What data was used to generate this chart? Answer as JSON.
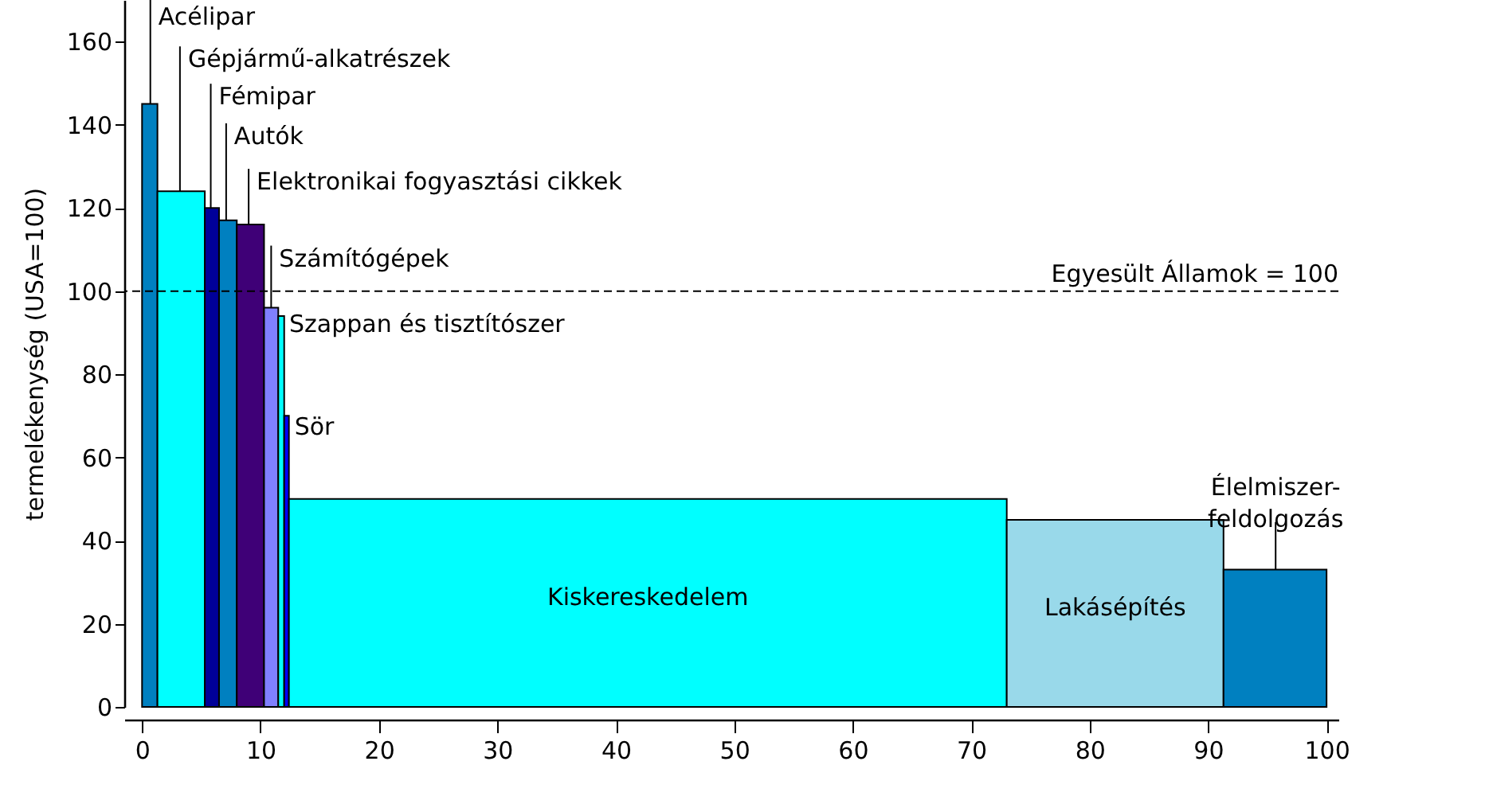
{
  "chart_data": {
    "type": "histogram",
    "bins": [
      0,
      1.3,
      5.3,
      6.5,
      8.0,
      10.3,
      11.5,
      12.0,
      12.4,
      73.0,
      91.3,
      100
    ],
    "values": [
      145,
      124,
      120,
      117,
      116,
      96,
      94,
      70,
      50,
      45,
      33
    ],
    "colors": [
      "#0080c0",
      "#00ffff",
      "#000099",
      "#0080c0",
      "#3f0077",
      "#8080ff",
      "#00ffff",
      "#0000ff",
      "#00ffff",
      "#99d9ea",
      "#0080c0"
    ],
    "ylabel": "termelékenység (USA=100)",
    "xlim": [
      -1.5,
      101
    ],
    "xticks": [
      0,
      10,
      20,
      30,
      40,
      50,
      60,
      70,
      80,
      90,
      100
    ],
    "ylim": [
      0,
      170
    ],
    "yticks": [
      0,
      20,
      40,
      60,
      80,
      100,
      120,
      140,
      160
    ],
    "grid": false,
    "ref_lines": [
      {
        "axis": "y",
        "value": 100,
        "label": "Egyesült Államok = 100",
        "line_style": "dashed",
        "color": "#000000"
      }
    ],
    "annotations": [
      {
        "text": "Acélipar",
        "x": 0.7,
        "y": 145
      },
      {
        "text": "Gépjármű-alkatrészek",
        "x": 3.2,
        "y": 124
      },
      {
        "text": "Fémipar",
        "x": 5.8,
        "y": 120
      },
      {
        "text": "Autók",
        "x": 7.1,
        "y": 117
      },
      {
        "text": "Elektronikai fogyasztási cikkek",
        "x": 9.0,
        "y": 116
      },
      {
        "text": "Számítógépek",
        "x": 10.9,
        "y": 96
      },
      {
        "text": "Szappan és tisztítószer",
        "x": 11.75,
        "y": 94
      },
      {
        "text": "Sör",
        "x": 12.2,
        "y": 70
      },
      "Kiskereskedelem",
      "Lakásépítés",
      {
        "text": "Élelmiszer-\nfeldolgozás",
        "x": 95.7,
        "y": 33
      }
    ]
  }
}
